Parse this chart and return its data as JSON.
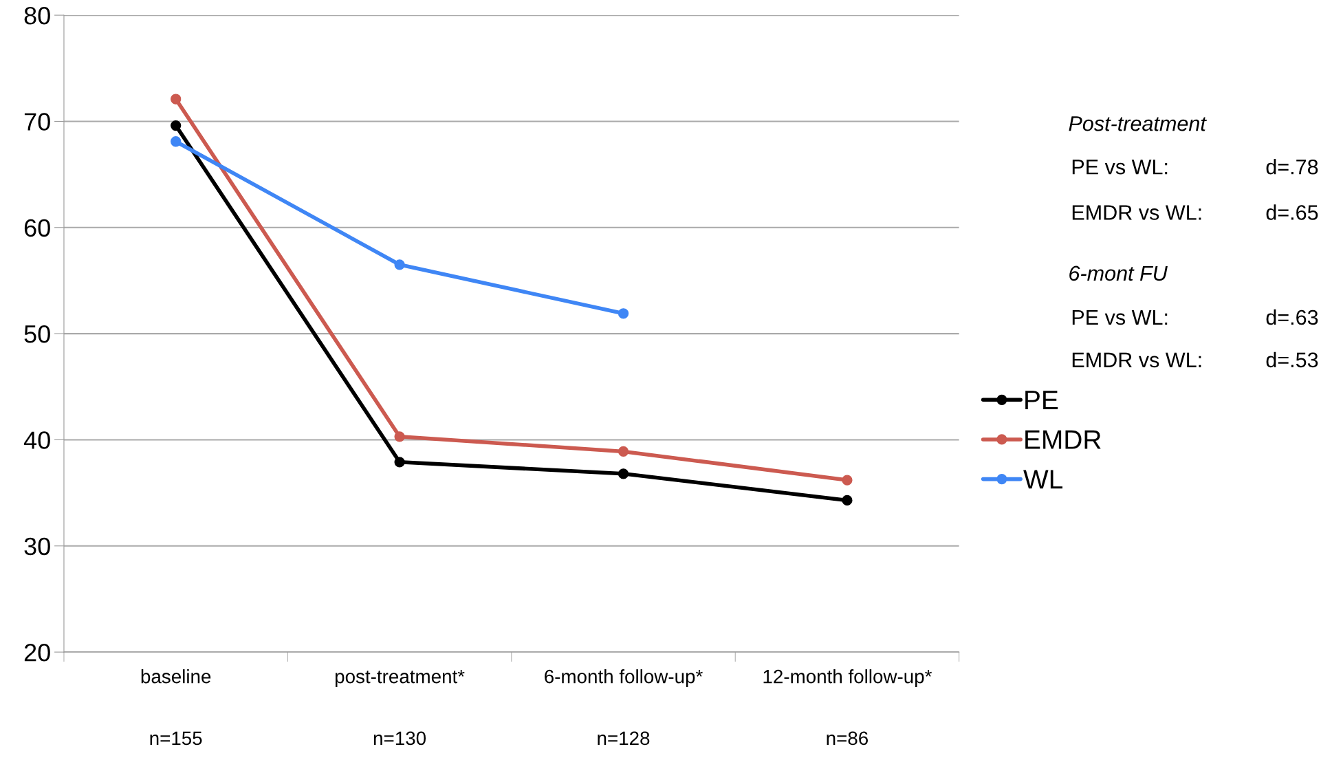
{
  "chart_data": {
    "type": "line",
    "categories": [
      "baseline\n\n\nn=155",
      "post-treatment*\n\n\nn=130",
      "6-month follow-up*\n\n\nn=128",
      "12-month follow-up*\n\n\nn=86"
    ],
    "series": [
      {
        "name": "PE",
        "color": "#000000",
        "values": [
          69.6,
          37.9,
          36.8,
          34.3
        ]
      },
      {
        "name": "EMDR",
        "color": "#cc5a50",
        "values": [
          72.1,
          40.3,
          38.9,
          36.2
        ]
      },
      {
        "name": "WL",
        "color": "#3f86f5",
        "values": [
          68.1,
          56.5,
          51.9,
          null
        ]
      }
    ],
    "ylim": [
      20,
      80
    ],
    "yticks": [
      20,
      30,
      40,
      50,
      60,
      70,
      80
    ],
    "grid": "y",
    "legend": "right",
    "marker": "circle",
    "line_style": "solid",
    "annotations": [
      "Post-treatment",
      "PE vs WL:",
      "d=.78",
      "EMDR vs WL:",
      "d=.65",
      "6-mont FU",
      "PE vs WL:",
      "d=.63",
      "EMDR vs WL:",
      "d=.53"
    ]
  }
}
